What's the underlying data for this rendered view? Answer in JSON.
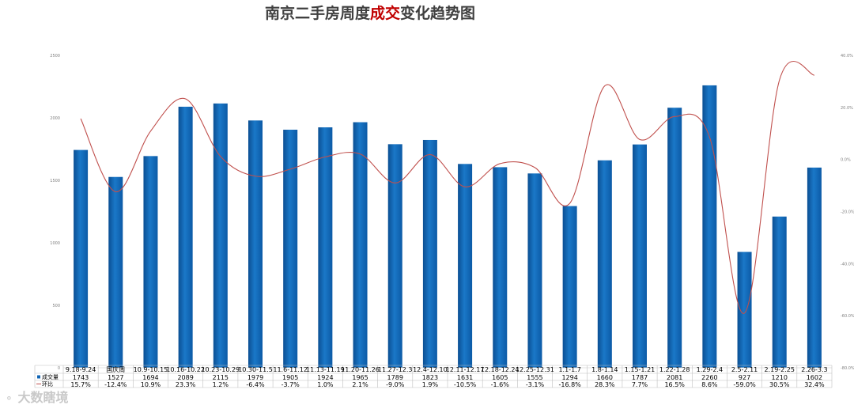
{
  "watermark": "大数瞎境",
  "chart_data": {
    "type": "bar",
    "title_prefix": "南京二手房周度",
    "title_emphasis": "成交",
    "title_suffix": "变化趋势图",
    "categories": [
      "9.18-9.24",
      "国庆周",
      "10.9-10.15",
      "10.16-10.22",
      "10.23-10.29",
      "10.30-11.5",
      "11.6-11.12",
      "11.13-11.19",
      "11.20-11.26",
      "11.27-12.3",
      "12.4-12.10",
      "12.11-12.17",
      "12.18-12.24",
      "12.25-12.31",
      "1.1-1.7",
      "1.8-1.14",
      "1.15-1.21",
      "1.22-1.28",
      "1.29-2.4",
      "2.5-2.11",
      "2.19-2.25",
      "2.26-3.3"
    ],
    "series": [
      {
        "name": "成交量",
        "type": "bar",
        "axis": "left",
        "color": "#0f64b4",
        "values": [
          1743,
          1527,
          1694,
          2089,
          2115,
          1979,
          1905,
          1924,
          1965,
          1789,
          1823,
          1631,
          1605,
          1555,
          1294,
          1660,
          1787,
          2081,
          2260,
          927,
          1210,
          1602
        ]
      },
      {
        "name": "环比",
        "type": "line",
        "axis": "right",
        "color": "#c0504d",
        "values": [
          15.7,
          -12.4,
          10.9,
          23.3,
          1.2,
          -6.4,
          -3.7,
          1.0,
          2.1,
          -9.0,
          1.9,
          -10.5,
          -1.6,
          -3.1,
          -16.8,
          28.3,
          7.7,
          16.5,
          8.6,
          -59.0,
          30.5,
          32.4
        ],
        "labels": [
          "15.7%",
          "-12.4%",
          "10.9%",
          "23.3%",
          "1.2%",
          "-6.4%",
          "-3.7%",
          "1.0%",
          "2.1%",
          "-9.0%",
          "1.9%",
          "-10.5%",
          "-1.6%",
          "-3.1%",
          "-16.8%",
          "28.3%",
          "7.7%",
          "16.5%",
          "8.6%",
          "-59.0%",
          "30.5%",
          "32.4%"
        ]
      }
    ],
    "y_left": {
      "min": 0,
      "max": 2500,
      "ticks": [
        0,
        500,
        1000,
        1500,
        2000,
        2500
      ]
    },
    "y_right": {
      "min": -80,
      "max": 40,
      "ticks": [
        "40.0%",
        "20.0%",
        "0.0%",
        "-20.0%",
        "-40.0%",
        "-60.0%",
        "-80.0%"
      ]
    },
    "grid": false,
    "data_table": true
  }
}
